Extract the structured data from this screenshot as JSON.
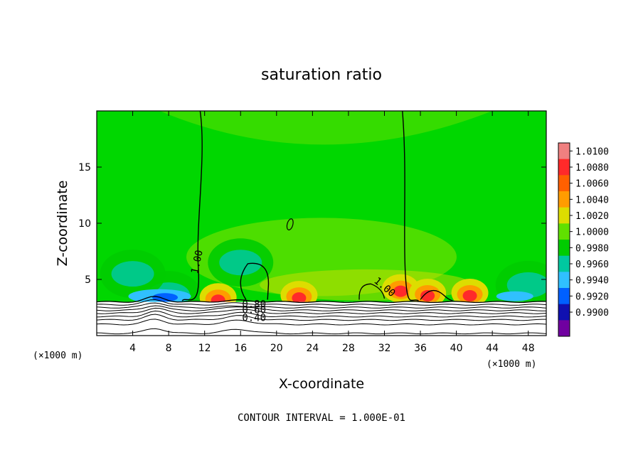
{
  "chart_data": {
    "type": "heatmap",
    "title": "saturation ratio",
    "xlabel": "X-coordinate",
    "ylabel": "Z-coordinate",
    "x_unit": "(×1000 m)",
    "z_unit": "(×1000 m)",
    "xlim": [
      0,
      50
    ],
    "ylim": [
      0,
      20
    ],
    "x_ticks": [
      4,
      8,
      12,
      16,
      20,
      24,
      28,
      32,
      36,
      40,
      44,
      48
    ],
    "y_ticks": [
      5,
      10,
      15
    ],
    "footer": "CONTOUR INTERVAL = 1.000E-01",
    "colorbar": {
      "levels": [
        "1.0100",
        "1.0080",
        "1.0060",
        "1.0040",
        "1.0020",
        "1.0000",
        "0.9980",
        "0.9960",
        "0.9940",
        "0.9920",
        "0.9900"
      ],
      "colors": [
        "#f08080",
        "#ff2a2a",
        "#ff6000",
        "#ff9c00",
        "#dddd00",
        "#60e000",
        "#00cc00",
        "#00c8a0",
        "#30c0ff",
        "#0060ff",
        "#1010b0",
        "#7000a0"
      ]
    },
    "contour_labels": [
      {
        "text": "1.00",
        "x": 11.5,
        "z": 6.5
      },
      {
        "text": "1.00",
        "x": 31.8,
        "z": 4.1
      },
      {
        "text": "0.80",
        "x": 17.5,
        "z": 2.5
      },
      {
        "text": "0.60",
        "x": 17.5,
        "z": 2.0
      },
      {
        "text": "0.40",
        "x": 17.5,
        "z": 1.3
      }
    ],
    "moist_patches": [
      {
        "x": 13.5,
        "z": 3.4
      },
      {
        "x": 22.5,
        "z": 3.6
      },
      {
        "x": 33.8,
        "z": 4.2
      },
      {
        "x": 36.8,
        "z": 3.8
      },
      {
        "x": 41.5,
        "z": 3.8
      }
    ],
    "dry_patches": [
      {
        "x": 8.0,
        "z": 3.6
      },
      {
        "x": 4.0,
        "z": 5.5
      },
      {
        "x": 48.0,
        "z": 4.5
      },
      {
        "x": 16.0,
        "z": 6.5
      }
    ]
  }
}
